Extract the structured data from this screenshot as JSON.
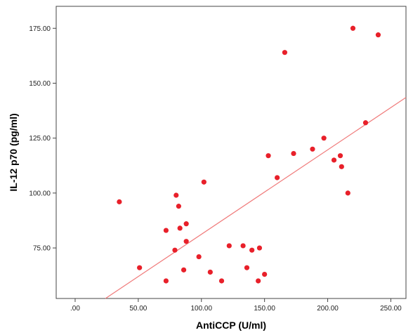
{
  "chart_data": {
    "type": "scatter",
    "xlabel": "AntiCCP (U/ml)",
    "ylabel": "IL-12 p70 (pg/ml)",
    "xlim": [
      -15,
      262
    ],
    "ylim": [
      52,
      185
    ],
    "x_ticks": [
      0,
      50,
      100,
      150,
      200,
      250
    ],
    "x_tick_labels": [
      ".00",
      "50.00",
      "100.00",
      "150.00",
      "200.00",
      "250.00"
    ],
    "y_ticks": [
      75,
      100,
      125,
      150,
      175
    ],
    "y_tick_labels": [
      "75.00",
      "100.00",
      "125.00",
      "150.00",
      "175.00"
    ],
    "grid": false,
    "point_color": "#e8202a",
    "line_color": "#f07a7a",
    "fit_line": {
      "x": [
        24,
        262
      ],
      "y": [
        52,
        143.5
      ]
    },
    "points": [
      {
        "x": 35,
        "y": 96
      },
      {
        "x": 51,
        "y": 66
      },
      {
        "x": 72,
        "y": 60
      },
      {
        "x": 72,
        "y": 83
      },
      {
        "x": 79,
        "y": 74
      },
      {
        "x": 80,
        "y": 99
      },
      {
        "x": 82,
        "y": 94
      },
      {
        "x": 83,
        "y": 84
      },
      {
        "x": 86,
        "y": 65
      },
      {
        "x": 88,
        "y": 78
      },
      {
        "x": 88,
        "y": 86
      },
      {
        "x": 98,
        "y": 71
      },
      {
        "x": 102,
        "y": 105
      },
      {
        "x": 107,
        "y": 64
      },
      {
        "x": 116,
        "y": 60
      },
      {
        "x": 122,
        "y": 76
      },
      {
        "x": 133,
        "y": 76
      },
      {
        "x": 136,
        "y": 66
      },
      {
        "x": 140,
        "y": 74
      },
      {
        "x": 145,
        "y": 60
      },
      {
        "x": 146,
        "y": 75
      },
      {
        "x": 150,
        "y": 63
      },
      {
        "x": 153,
        "y": 117
      },
      {
        "x": 160,
        "y": 107
      },
      {
        "x": 166,
        "y": 164
      },
      {
        "x": 173,
        "y": 118
      },
      {
        "x": 188,
        "y": 120
      },
      {
        "x": 197,
        "y": 125
      },
      {
        "x": 205,
        "y": 115
      },
      {
        "x": 210,
        "y": 117
      },
      {
        "x": 211,
        "y": 112
      },
      {
        "x": 216,
        "y": 100
      },
      {
        "x": 220,
        "y": 175
      },
      {
        "x": 230,
        "y": 132
      },
      {
        "x": 240,
        "y": 172
      }
    ]
  }
}
